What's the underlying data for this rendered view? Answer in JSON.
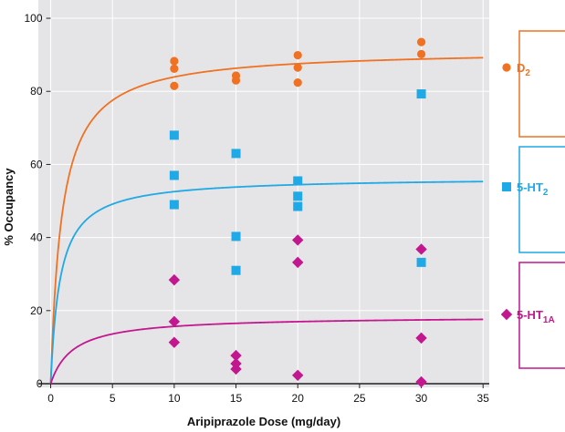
{
  "chart_data": {
    "type": "scatter",
    "title": "",
    "xlabel": "Aripiprazole Dose (mg/day)",
    "ylabel": "% Occupancy",
    "xlim": [
      -1,
      35.5
    ],
    "ylim": [
      -1,
      105
    ],
    "x_ticks": [
      "0",
      "5",
      "10",
      "15",
      "20",
      "25",
      "30",
      "35"
    ],
    "y_ticks": [
      "0",
      "20",
      "40",
      "60",
      "80",
      "100"
    ],
    "grid": true,
    "legend_position": "right",
    "background_color": "#e5e5e7",
    "series": [
      {
        "name": "D",
        "name_sub": "2",
        "color": "#f07122",
        "marker": "circle",
        "emax": 91.5,
        "ed50": 0.9,
        "points": [
          [
            10,
            88.3
          ],
          [
            10,
            86.2
          ],
          [
            10,
            81.5
          ],
          [
            15,
            84.3
          ],
          [
            15,
            83.0
          ],
          [
            20,
            89.9
          ],
          [
            20,
            86.5
          ],
          [
            20,
            82.4
          ],
          [
            30,
            93.5
          ],
          [
            30,
            90.2
          ]
        ]
      },
      {
        "name": "5-HT",
        "name_sub": "2",
        "color": "#1fa9e6",
        "marker": "square",
        "emax": 56.5,
        "ed50": 0.75,
        "points": [
          [
            10,
            68.0
          ],
          [
            10,
            57.0
          ],
          [
            10,
            49.0
          ],
          [
            15,
            63.0
          ],
          [
            15,
            40.3
          ],
          [
            15,
            31.0
          ],
          [
            20,
            55.5
          ],
          [
            20,
            51.3
          ],
          [
            20,
            48.5
          ],
          [
            30,
            79.3
          ],
          [
            30,
            33.2
          ]
        ]
      },
      {
        "name": "5-HT",
        "name_sub": "1A",
        "color": "#c2178f",
        "marker": "diamond",
        "emax": 18.5,
        "ed50": 1.8,
        "points": [
          [
            10,
            28.4
          ],
          [
            10,
            17.0
          ],
          [
            10,
            11.3
          ],
          [
            15,
            7.7
          ],
          [
            15,
            5.5
          ],
          [
            15,
            4.0
          ],
          [
            20,
            39.3
          ],
          [
            20,
            33.2
          ],
          [
            20,
            2.3
          ],
          [
            30,
            36.8
          ],
          [
            30,
            12.5
          ],
          [
            30,
            0.5
          ]
        ]
      }
    ]
  }
}
